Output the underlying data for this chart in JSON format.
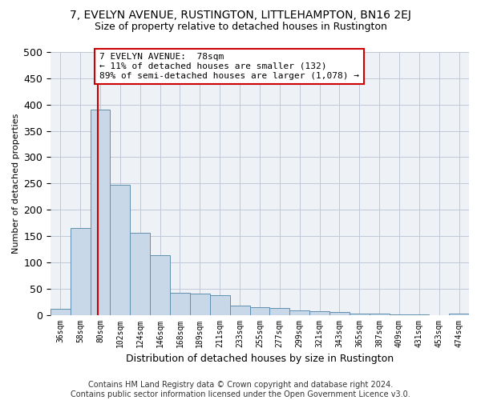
{
  "title": "7, EVELYN AVENUE, RUSTINGTON, LITTLEHAMPTON, BN16 2EJ",
  "subtitle": "Size of property relative to detached houses in Rustington",
  "xlabel": "Distribution of detached houses by size in Rustington",
  "ylabel": "Number of detached properties",
  "bar_labels": [
    "36sqm",
    "58sqm",
    "80sqm",
    "102sqm",
    "124sqm",
    "146sqm",
    "168sqm",
    "189sqm",
    "211sqm",
    "233sqm",
    "255sqm",
    "277sqm",
    "299sqm",
    "321sqm",
    "343sqm",
    "365sqm",
    "387sqm",
    "409sqm",
    "431sqm",
    "453sqm",
    "474sqm"
  ],
  "bar_values": [
    12,
    165,
    390,
    248,
    156,
    113,
    42,
    41,
    38,
    18,
    15,
    13,
    9,
    7,
    5,
    3,
    3,
    1,
    1,
    0,
    2
  ],
  "bar_color": "#c8d8e8",
  "bar_edgecolor": "#6090b0",
  "grid_color": "#c0c8d8",
  "background_color": "#eef2f7",
  "vline_color": "#cc0000",
  "annotation_line1": "7 EVELYN AVENUE:  78sqm",
  "annotation_line2": "← 11% of detached houses are smaller (132)",
  "annotation_line3": "89% of semi-detached houses are larger (1,078) →",
  "annotation_box_color": "#ffffff",
  "annotation_box_edgecolor": "#cc0000",
  "footer": "Contains HM Land Registry data © Crown copyright and database right 2024.\nContains public sector information licensed under the Open Government Licence v3.0.",
  "ylim": [
    0,
    500
  ],
  "title_fontsize": 10,
  "subtitle_fontsize": 9,
  "annotation_fontsize": 8,
  "tick_fontsize": 7,
  "ylabel_fontsize": 8,
  "xlabel_fontsize": 9,
  "footer_fontsize": 7,
  "vline_xindex": 1.88
}
